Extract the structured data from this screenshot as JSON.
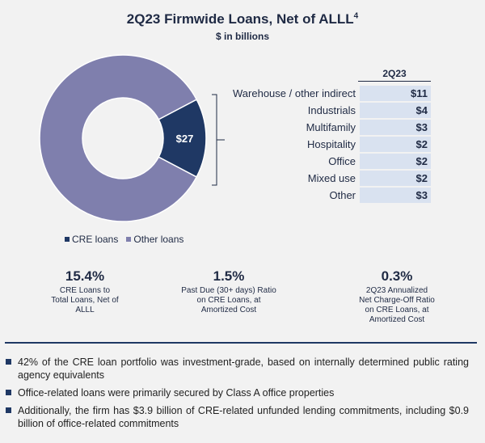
{
  "header": {
    "title": "2Q23 Firmwide Loans, Net of ALLL",
    "title_superscript": "4",
    "subtitle": "$ in billions"
  },
  "colors": {
    "cre": "#1f3864",
    "other": "#7f7fad",
    "table_fill": "#d9e2f0"
  },
  "chart_data": {
    "type": "pie",
    "slices": [
      {
        "name": "CRE loans",
        "value": 15.4,
        "label": "$27"
      },
      {
        "name": "Other loans",
        "value": 84.6
      }
    ],
    "legend": [
      "CRE loans",
      "Other loans"
    ],
    "legend_position": "bottom"
  },
  "breakdown": {
    "column_header": "2Q23",
    "rows": [
      {
        "label": "Warehouse / other indirect",
        "value": "$11"
      },
      {
        "label": "Industrials",
        "value": "$4"
      },
      {
        "label": "Multifamily",
        "value": "$3"
      },
      {
        "label": "Hospitality",
        "value": "$2"
      },
      {
        "label": "Office",
        "value": "$2"
      },
      {
        "label": "Mixed use",
        "value": "$2"
      },
      {
        "label": "Other",
        "value": "$3"
      }
    ]
  },
  "stats": [
    {
      "value": "15.4%",
      "label_lines": [
        "CRE Loans to",
        "Total Loans, Net of",
        "ALLL"
      ]
    },
    {
      "value": "1.5%",
      "label_lines": [
        "Past Due (30+ days) Ratio",
        "on CRE Loans, at",
        "Amortized Cost"
      ]
    },
    {
      "value": "0.3%",
      "label_lines": [
        "2Q23 Annualized",
        "Net Charge-Off Ratio",
        "on CRE Loans, at",
        "Amortized Cost"
      ]
    }
  ],
  "bullets": [
    "42% of the CRE loan portfolio was investment-grade, based on internally determined public rating agency equivalents",
    "Office-related loans were primarily secured by Class A office properties",
    "Additionally, the firm has $3.9 billion of CRE-related unfunded lending commitments, including $0.9 billion of office-related commitments"
  ]
}
